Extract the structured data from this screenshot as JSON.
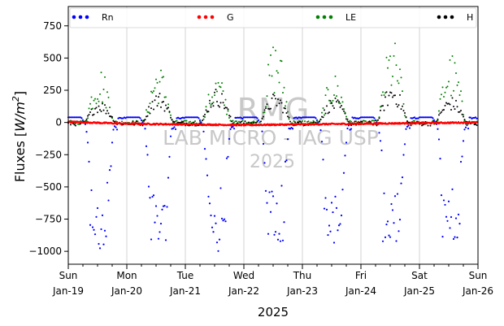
{
  "chart_data": {
    "type": "scatter",
    "xlabel": "2025",
    "ylabel_main": "Fluxes [",
    "ylabel_unit": "W/m",
    "ylabel_sup": "2",
    "ylabel_end": "]",
    "xlim": [
      "2025-01-19",
      "2025-01-26"
    ],
    "ylim": [
      -1100,
      900
    ],
    "yticks": [
      750,
      500,
      250,
      0,
      -250,
      -500,
      -750,
      -1000
    ],
    "xticks": [
      {
        "day": "Sun",
        "date": "Jan-19"
      },
      {
        "day": "Mon",
        "date": "Jan-20"
      },
      {
        "day": "Tue",
        "date": "Jan-21"
      },
      {
        "day": "Wed",
        "date": "Jan-22"
      },
      {
        "day": "Thu",
        "date": "Jan-23"
      },
      {
        "day": "Fri",
        "date": "Jan-24"
      },
      {
        "day": "Sat",
        "date": "Jan-25"
      },
      {
        "day": "Sun",
        "date": "Jan-26"
      }
    ],
    "grid": "vertical",
    "legend_position": "top",
    "watermark": [
      "RMG",
      "LAB MICRO - IAG USP",
      "2025"
    ],
    "series": [
      {
        "name": "Rn",
        "color": "#0000ff",
        "day_min": [
          -1050,
          -990,
          -1010,
          -980,
          -960,
          -1030,
          -950
        ],
        "night_value": 40
      },
      {
        "name": "G",
        "color": "#ff0000",
        "values": [
          5,
          -10,
          -15,
          -20,
          -15,
          -10,
          -5,
          0
        ]
      },
      {
        "name": "LE",
        "color": "#008000",
        "day_max": [
          440,
          460,
          380,
          660,
          390,
          660,
          550
        ]
      },
      {
        "name": "H",
        "color": "#000000",
        "day_max": [
          170,
          240,
          270,
          230,
          190,
          300,
          200
        ]
      }
    ]
  }
}
